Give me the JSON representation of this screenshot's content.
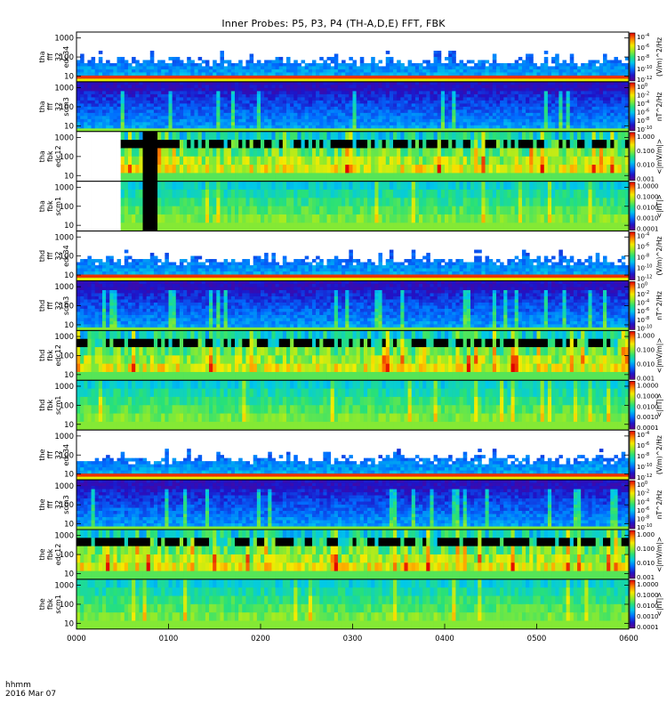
{
  "title": "Inner Probes: P5, P3, P4 (TH-A,D,E) FFT, FBK",
  "footer": {
    "time_label": "hhmm",
    "date_label": "2016 Mar 07"
  },
  "chart_data": {
    "type": "heatmap",
    "title": "Inner Probes: P5, P3, P4 (TH-A,D,E) FFT, FBK",
    "xlabel": "hhmm",
    "x_ticks": [
      "0000",
      "0100",
      "0200",
      "0300",
      "0400",
      "0500",
      "0600"
    ],
    "y_scale": "log",
    "y_ticks": [
      "10",
      "100",
      "1000"
    ],
    "colormap": "rainbow",
    "panels": [
      {
        "probe": "tha",
        "ylabel": [
          "tha",
          "fff",
          "32",
          "edc34"
        ],
        "kind": "fff_e",
        "cbar_ticks": [
          "10^-4",
          "10^-6",
          "10^-8",
          "10^-10",
          "10^-12"
        ],
        "cbar_label": "(V/m)^2/Hz"
      },
      {
        "probe": "tha",
        "ylabel": [
          "tha",
          "fff",
          "32",
          "scm3"
        ],
        "kind": "fff_b",
        "cbar_ticks": [
          "10^0",
          "10^-2",
          "10^-4",
          "10^-6",
          "10^-8",
          "10^-10"
        ],
        "cbar_label": "nT^2/Hz"
      },
      {
        "probe": "tha",
        "ylabel": [
          "tha",
          "fbk",
          "edc12"
        ],
        "kind": "fbk_e",
        "cbar_ticks": [
          "1.000",
          "0.100",
          "0.010",
          "0.001"
        ],
        "cbar_label": "<|mV/m|>"
      },
      {
        "probe": "tha",
        "ylabel": [
          "tha",
          "fbk",
          "scm1"
        ],
        "kind": "fbk_b",
        "cbar_ticks": [
          "1.0000",
          "0.1000",
          "0.0100",
          "0.0010",
          "0.0001"
        ],
        "cbar_label": "<|nT|>"
      },
      {
        "probe": "thd",
        "ylabel": [
          "thd",
          "fff",
          "32",
          "edc34"
        ],
        "kind": "fff_e",
        "cbar_ticks": [
          "10^-4",
          "10^-6",
          "10^-8",
          "10^-10",
          "10^-12"
        ],
        "cbar_label": "(V/m)^2/Hz"
      },
      {
        "probe": "thd",
        "ylabel": [
          "thd",
          "fff",
          "32",
          "scm3"
        ],
        "kind": "fff_b",
        "cbar_ticks": [
          "10^0",
          "10^-2",
          "10^-4",
          "10^-6",
          "10^-8",
          "10^-10"
        ],
        "cbar_label": "nT^2/Hz"
      },
      {
        "probe": "thd",
        "ylabel": [
          "thd",
          "fbk",
          "edc12"
        ],
        "kind": "fbk_e",
        "cbar_ticks": [
          "1.000",
          "0.100",
          "0.010",
          "0.001"
        ],
        "cbar_label": "<|mV/m|>"
      },
      {
        "probe": "thd",
        "ylabel": [
          "thd",
          "fbk",
          "scm1"
        ],
        "kind": "fbk_b",
        "cbar_ticks": [
          "1.0000",
          "0.1000",
          "0.0100",
          "0.0010",
          "0.0001"
        ],
        "cbar_label": "<|nT|>"
      },
      {
        "probe": "the",
        "ylabel": [
          "the",
          "fff",
          "32",
          "edc34"
        ],
        "kind": "fff_e",
        "cbar_ticks": [
          "10^-4",
          "10^-6",
          "10^-8",
          "10^-10",
          "10^-12"
        ],
        "cbar_label": "(V/m)^2/Hz"
      },
      {
        "probe": "the",
        "ylabel": [
          "the",
          "fff",
          "32",
          "scm3"
        ],
        "kind": "fff_b",
        "cbar_ticks": [
          "10^0",
          "10^-2",
          "10^-4",
          "10^-6",
          "10^-8",
          "10^-10"
        ],
        "cbar_label": "nT^2/Hz"
      },
      {
        "probe": "the",
        "ylabel": [
          "the",
          "fbk",
          "edc12"
        ],
        "kind": "fbk_e",
        "cbar_ticks": [
          "1.000",
          "0.100",
          "0.010",
          "0.001"
        ],
        "cbar_label": "<|mV/m|>"
      },
      {
        "probe": "the",
        "ylabel": [
          "the",
          "fbk",
          "scm1"
        ],
        "kind": "fbk_b",
        "cbar_ticks": [
          "1.0000",
          "0.1000",
          "0.0100",
          "0.0010",
          "0.0001"
        ],
        "cbar_label": "<|nT|>"
      }
    ]
  }
}
